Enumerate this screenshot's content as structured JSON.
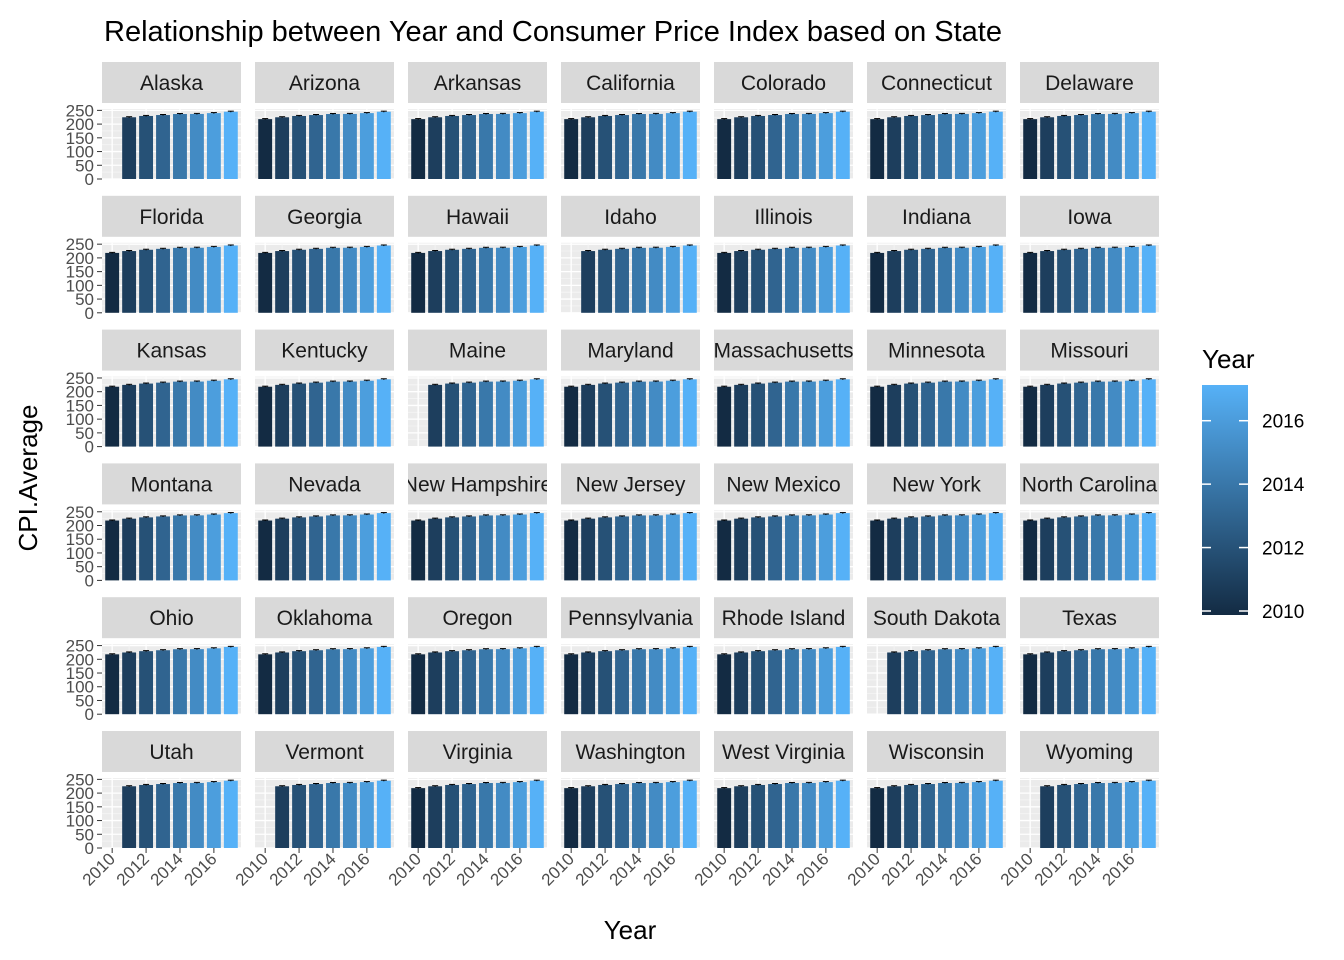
{
  "chart_data": {
    "type": "bar",
    "title": "Relationship between Year and Consumer Price Index based on State",
    "xlabel": "Year",
    "ylabel": "CPI.Average",
    "facet_by": "State",
    "years": [
      2010,
      2011,
      2012,
      2013,
      2014,
      2015,
      2016,
      2017
    ],
    "x_ticks": [
      "2010",
      "2012",
      "2014",
      "2016"
    ],
    "y_ticks": [
      "0",
      "50",
      "100",
      "150",
      "200",
      "250"
    ],
    "ylim": [
      0,
      255
    ],
    "xlim": [
      2009.4,
      2017.6
    ],
    "grid": true,
    "error_bars": true,
    "cpi_by_year": [
      218.1,
      224.9,
      229.6,
      233.0,
      236.7,
      237.0,
      240.0,
      245.1
    ],
    "legend": {
      "title": "Year",
      "position": "right",
      "labels": [
        "2016",
        "2014",
        "2012",
        "2010"
      ],
      "range": [
        2010,
        2017
      ],
      "colors": {
        "low": "#132B43",
        "high": "#56B1F7"
      }
    },
    "panels": [
      {
        "state": "Alaska",
        "years": [
          2011,
          2012,
          2013,
          2014,
          2015,
          2016,
          2017
        ]
      },
      {
        "state": "Arizona",
        "years": [
          2010,
          2011,
          2012,
          2013,
          2014,
          2015,
          2016,
          2017
        ]
      },
      {
        "state": "Arkansas",
        "years": [
          2010,
          2011,
          2012,
          2013,
          2014,
          2015,
          2016,
          2017
        ]
      },
      {
        "state": "California",
        "years": [
          2010,
          2011,
          2012,
          2013,
          2014,
          2015,
          2016,
          2017
        ]
      },
      {
        "state": "Colorado",
        "years": [
          2010,
          2011,
          2012,
          2013,
          2014,
          2015,
          2016,
          2017
        ]
      },
      {
        "state": "Connecticut",
        "years": [
          2010,
          2011,
          2012,
          2013,
          2014,
          2015,
          2016,
          2017
        ]
      },
      {
        "state": "Delaware",
        "years": [
          2010,
          2011,
          2012,
          2013,
          2014,
          2015,
          2016,
          2017
        ]
      },
      {
        "state": "Florida",
        "years": [
          2010,
          2011,
          2012,
          2013,
          2014,
          2015,
          2016,
          2017
        ]
      },
      {
        "state": "Georgia",
        "years": [
          2010,
          2011,
          2012,
          2013,
          2014,
          2015,
          2016,
          2017
        ]
      },
      {
        "state": "Hawaii",
        "years": [
          2010,
          2011,
          2012,
          2013,
          2014,
          2015,
          2016,
          2017
        ]
      },
      {
        "state": "Idaho",
        "years": [
          2011,
          2012,
          2013,
          2014,
          2015,
          2016,
          2017
        ]
      },
      {
        "state": "Illinois",
        "years": [
          2010,
          2011,
          2012,
          2013,
          2014,
          2015,
          2016,
          2017
        ]
      },
      {
        "state": "Indiana",
        "years": [
          2010,
          2011,
          2012,
          2013,
          2014,
          2015,
          2016,
          2017
        ]
      },
      {
        "state": "Iowa",
        "years": [
          2010,
          2011,
          2012,
          2013,
          2014,
          2015,
          2016,
          2017
        ]
      },
      {
        "state": "Kansas",
        "years": [
          2010,
          2011,
          2012,
          2013,
          2014,
          2015,
          2016,
          2017
        ]
      },
      {
        "state": "Kentucky",
        "years": [
          2010,
          2011,
          2012,
          2013,
          2014,
          2015,
          2016,
          2017
        ]
      },
      {
        "state": "Maine",
        "years": [
          2011,
          2012,
          2013,
          2014,
          2015,
          2016,
          2017
        ]
      },
      {
        "state": "Maryland",
        "years": [
          2010,
          2011,
          2012,
          2013,
          2014,
          2015,
          2016,
          2017
        ]
      },
      {
        "state": "Massachusetts",
        "years": [
          2010,
          2011,
          2012,
          2013,
          2014,
          2015,
          2016,
          2017
        ]
      },
      {
        "state": "Minnesota",
        "years": [
          2010,
          2011,
          2012,
          2013,
          2014,
          2015,
          2016,
          2017
        ]
      },
      {
        "state": "Missouri",
        "years": [
          2010,
          2011,
          2012,
          2013,
          2014,
          2015,
          2016,
          2017
        ]
      },
      {
        "state": "Montana",
        "years": [
          2010,
          2011,
          2012,
          2013,
          2014,
          2015,
          2016,
          2017
        ]
      },
      {
        "state": "Nevada",
        "years": [
          2010,
          2011,
          2012,
          2013,
          2014,
          2015,
          2016,
          2017
        ]
      },
      {
        "state": "New Hampshire",
        "years": [
          2010,
          2011,
          2012,
          2013,
          2014,
          2015,
          2016,
          2017
        ]
      },
      {
        "state": "New Jersey",
        "years": [
          2010,
          2011,
          2012,
          2013,
          2014,
          2015,
          2016,
          2017
        ]
      },
      {
        "state": "New Mexico",
        "years": [
          2010,
          2011,
          2012,
          2013,
          2014,
          2015,
          2016,
          2017
        ]
      },
      {
        "state": "New York",
        "years": [
          2010,
          2011,
          2012,
          2013,
          2014,
          2015,
          2016,
          2017
        ]
      },
      {
        "state": "North Carolina",
        "years": [
          2010,
          2011,
          2012,
          2013,
          2014,
          2015,
          2016,
          2017
        ]
      },
      {
        "state": "Ohio",
        "years": [
          2010,
          2011,
          2012,
          2013,
          2014,
          2015,
          2016,
          2017
        ]
      },
      {
        "state": "Oklahoma",
        "years": [
          2010,
          2011,
          2012,
          2013,
          2014,
          2015,
          2016,
          2017
        ]
      },
      {
        "state": "Oregon",
        "years": [
          2010,
          2011,
          2012,
          2013,
          2014,
          2015,
          2016,
          2017
        ]
      },
      {
        "state": "Pennsylvania",
        "years": [
          2010,
          2011,
          2012,
          2013,
          2014,
          2015,
          2016,
          2017
        ]
      },
      {
        "state": "Rhode Island",
        "years": [
          2010,
          2011,
          2012,
          2013,
          2014,
          2015,
          2016,
          2017
        ]
      },
      {
        "state": "South Dakota",
        "years": [
          2011,
          2012,
          2013,
          2014,
          2015,
          2016,
          2017
        ]
      },
      {
        "state": "Texas",
        "years": [
          2010,
          2011,
          2012,
          2013,
          2014,
          2015,
          2016,
          2017
        ]
      },
      {
        "state": "Utah",
        "years": [
          2011,
          2012,
          2013,
          2014,
          2015,
          2016,
          2017
        ]
      },
      {
        "state": "Vermont",
        "years": [
          2011,
          2012,
          2013,
          2014,
          2015,
          2016,
          2017
        ]
      },
      {
        "state": "Virginia",
        "years": [
          2010,
          2011,
          2012,
          2013,
          2014,
          2015,
          2016,
          2017
        ]
      },
      {
        "state": "Washington",
        "years": [
          2010,
          2011,
          2012,
          2013,
          2014,
          2015,
          2016,
          2017
        ]
      },
      {
        "state": "West Virginia",
        "years": [
          2010,
          2011,
          2012,
          2013,
          2014,
          2015,
          2016,
          2017
        ]
      },
      {
        "state": "Wisconsin",
        "years": [
          2010,
          2011,
          2012,
          2013,
          2014,
          2015,
          2016,
          2017
        ]
      },
      {
        "state": "Wyoming",
        "years": [
          2011,
          2012,
          2013,
          2014,
          2015,
          2016,
          2017
        ]
      }
    ]
  }
}
